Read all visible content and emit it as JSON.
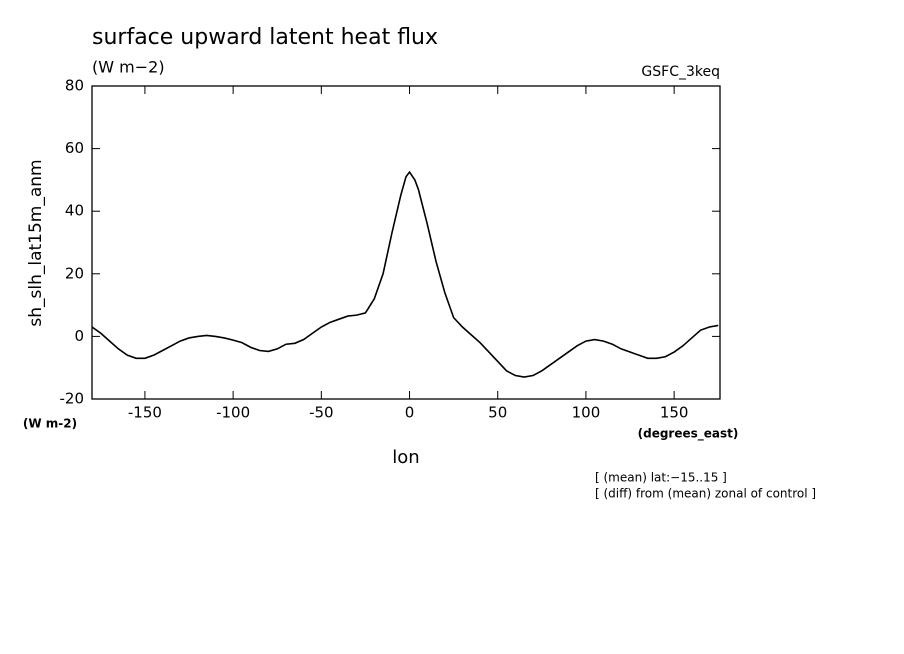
{
  "chart_data": {
    "type": "line",
    "title": "surface upward latent heat flux",
    "subtitle": "(W m−2)",
    "annotation_right": "GSFC_3keq",
    "y_label": "sh_slh_lat15m_anm",
    "y_units": "(W m-2)",
    "x_label": "lon",
    "x_units": "(degrees_east)",
    "notes": [
      "[ (mean) lat:−15..15 ]",
      "[ (diff) from (mean) zonal of control ]"
    ],
    "x": [
      -180,
      -175,
      -170,
      -165,
      -160,
      -155,
      -150,
      -145,
      -140,
      -135,
      -130,
      -125,
      -120,
      -115,
      -110,
      -105,
      -100,
      -95,
      -90,
      -85,
      -80,
      -75,
      -70,
      -65,
      -60,
      -55,
      -50,
      -45,
      -40,
      -35,
      -30,
      -25,
      -20,
      -15,
      -10,
      -5,
      -2,
      0,
      3,
      5,
      10,
      15,
      20,
      25,
      30,
      35,
      40,
      45,
      50,
      55,
      60,
      65,
      70,
      75,
      80,
      85,
      90,
      95,
      100,
      105,
      110,
      115,
      120,
      125,
      130,
      135,
      140,
      145,
      150,
      155,
      160,
      165,
      170,
      175
    ],
    "series": [
      {
        "name": "sh_slh_lat15m_anm",
        "color": "#000000",
        "values": [
          3,
          1,
          -1.5,
          -4,
          -6,
          -7,
          -7,
          -6,
          -4.5,
          -3,
          -1.5,
          -0.5,
          0,
          0.3,
          0,
          -0.5,
          -1.2,
          -2,
          -3.5,
          -4.5,
          -4.8,
          -4,
          -2.5,
          -2.2,
          -1,
          1,
          3,
          4.5,
          5.5,
          6.5,
          6.8,
          7.5,
          12,
          20,
          33,
          45,
          51,
          52.5,
          50,
          47,
          36,
          24,
          14,
          6,
          3,
          0.5,
          -2,
          -5,
          -8,
          -11,
          -12.5,
          -13,
          -12.5,
          -11,
          -9,
          -7,
          -5,
          -3,
          -1.5,
          -1,
          -1.5,
          -2.5,
          -4,
          -5,
          -6,
          -7,
          -7,
          -6.5,
          -5,
          -3,
          -0.5,
          2,
          3,
          3.5
        ]
      }
    ],
    "xlim": [
      -180,
      176
    ],
    "ylim": [
      -20,
      80
    ],
    "xticks": [
      -150,
      -100,
      -50,
      0,
      50,
      100,
      150
    ],
    "yticks": [
      -20,
      0,
      20,
      40,
      60,
      80
    ]
  }
}
